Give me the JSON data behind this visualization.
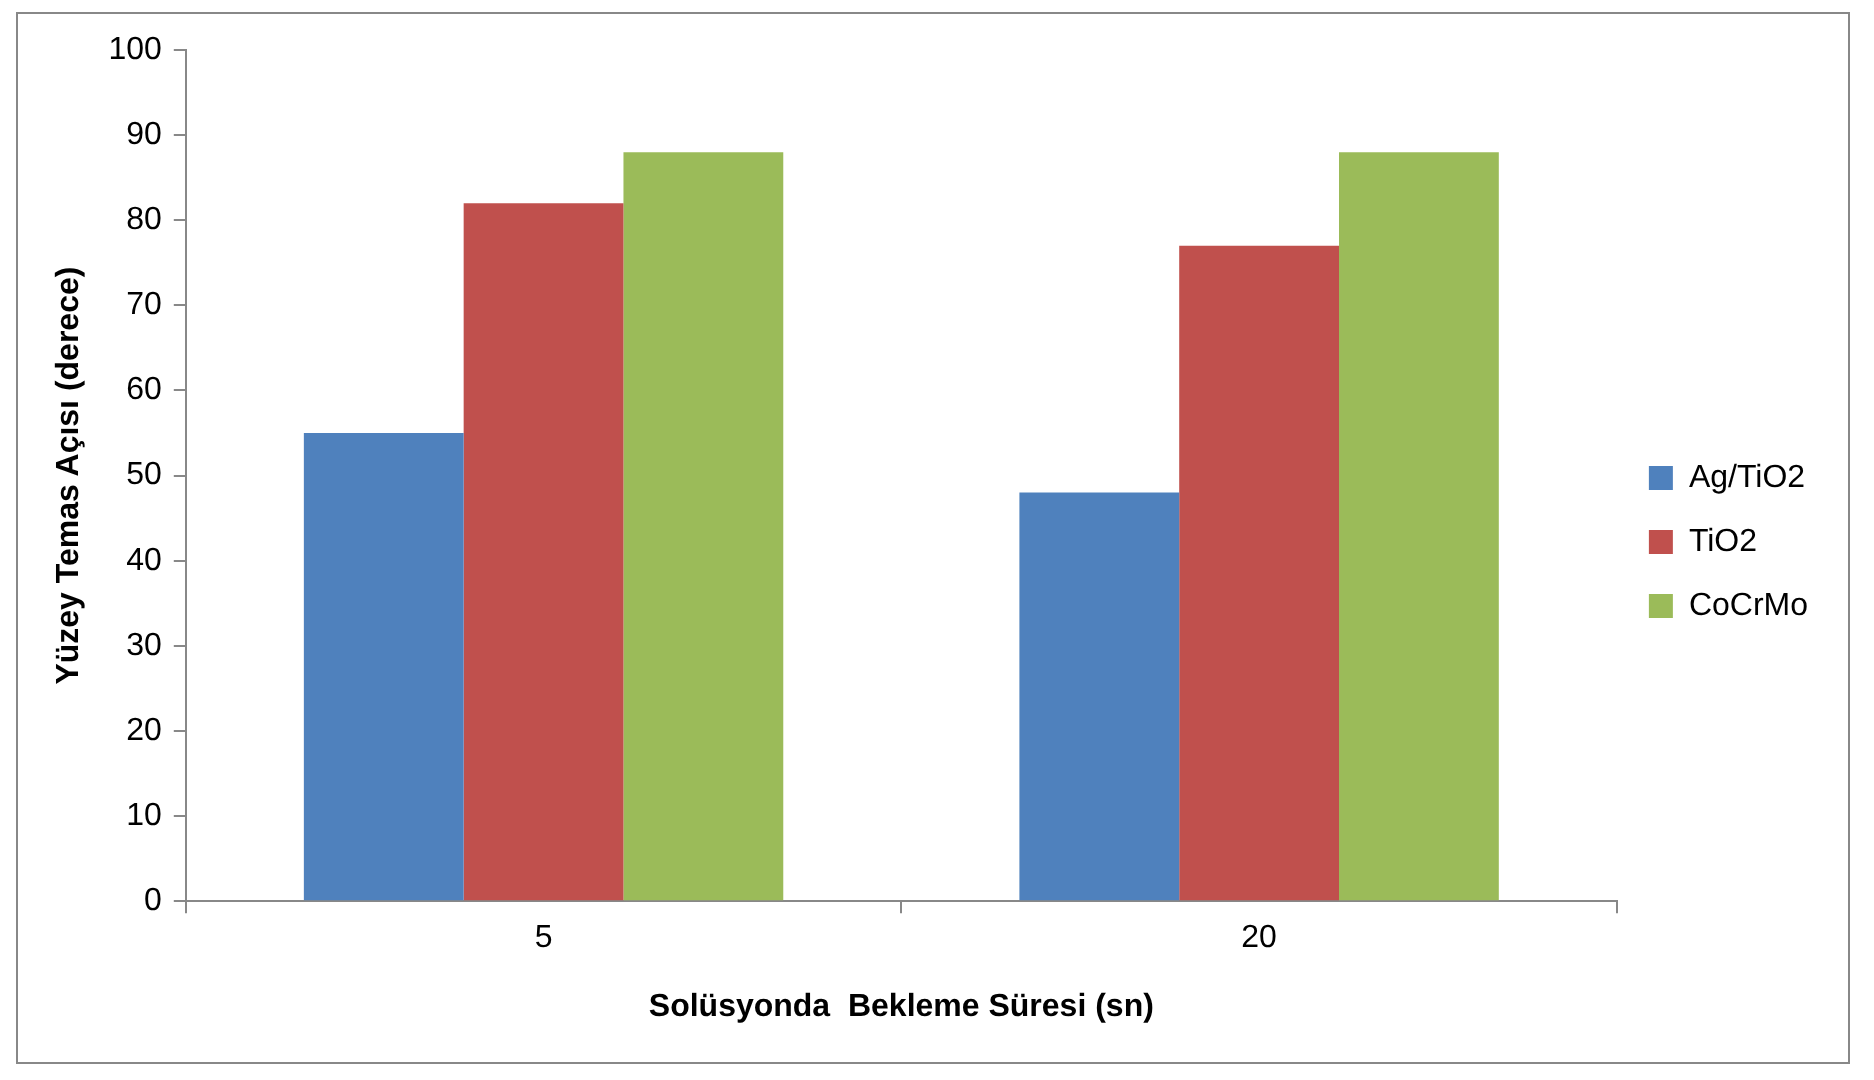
{
  "chart_data": {
    "type": "bar",
    "xlabel": "Solüsyonda  Bekleme Süresi (sn)",
    "ylabel": "Yüzey Temas Açısı (derece)",
    "categories": [
      "5",
      "20"
    ],
    "series": [
      {
        "name": "Ag/TiO2",
        "color": "#4f81bd",
        "values": [
          55,
          48
        ]
      },
      {
        "name": "TiO2",
        "color": "#c0504d",
        "values": [
          82,
          77
        ]
      },
      {
        "name": "CoCrMo",
        "color": "#9bbb59",
        "values": [
          88,
          88
        ]
      }
    ],
    "ylim": [
      0,
      100
    ],
    "yticks": [
      0,
      10,
      20,
      30,
      40,
      50,
      60,
      70,
      80,
      90,
      100
    ],
    "grid": false,
    "legend": "right"
  }
}
